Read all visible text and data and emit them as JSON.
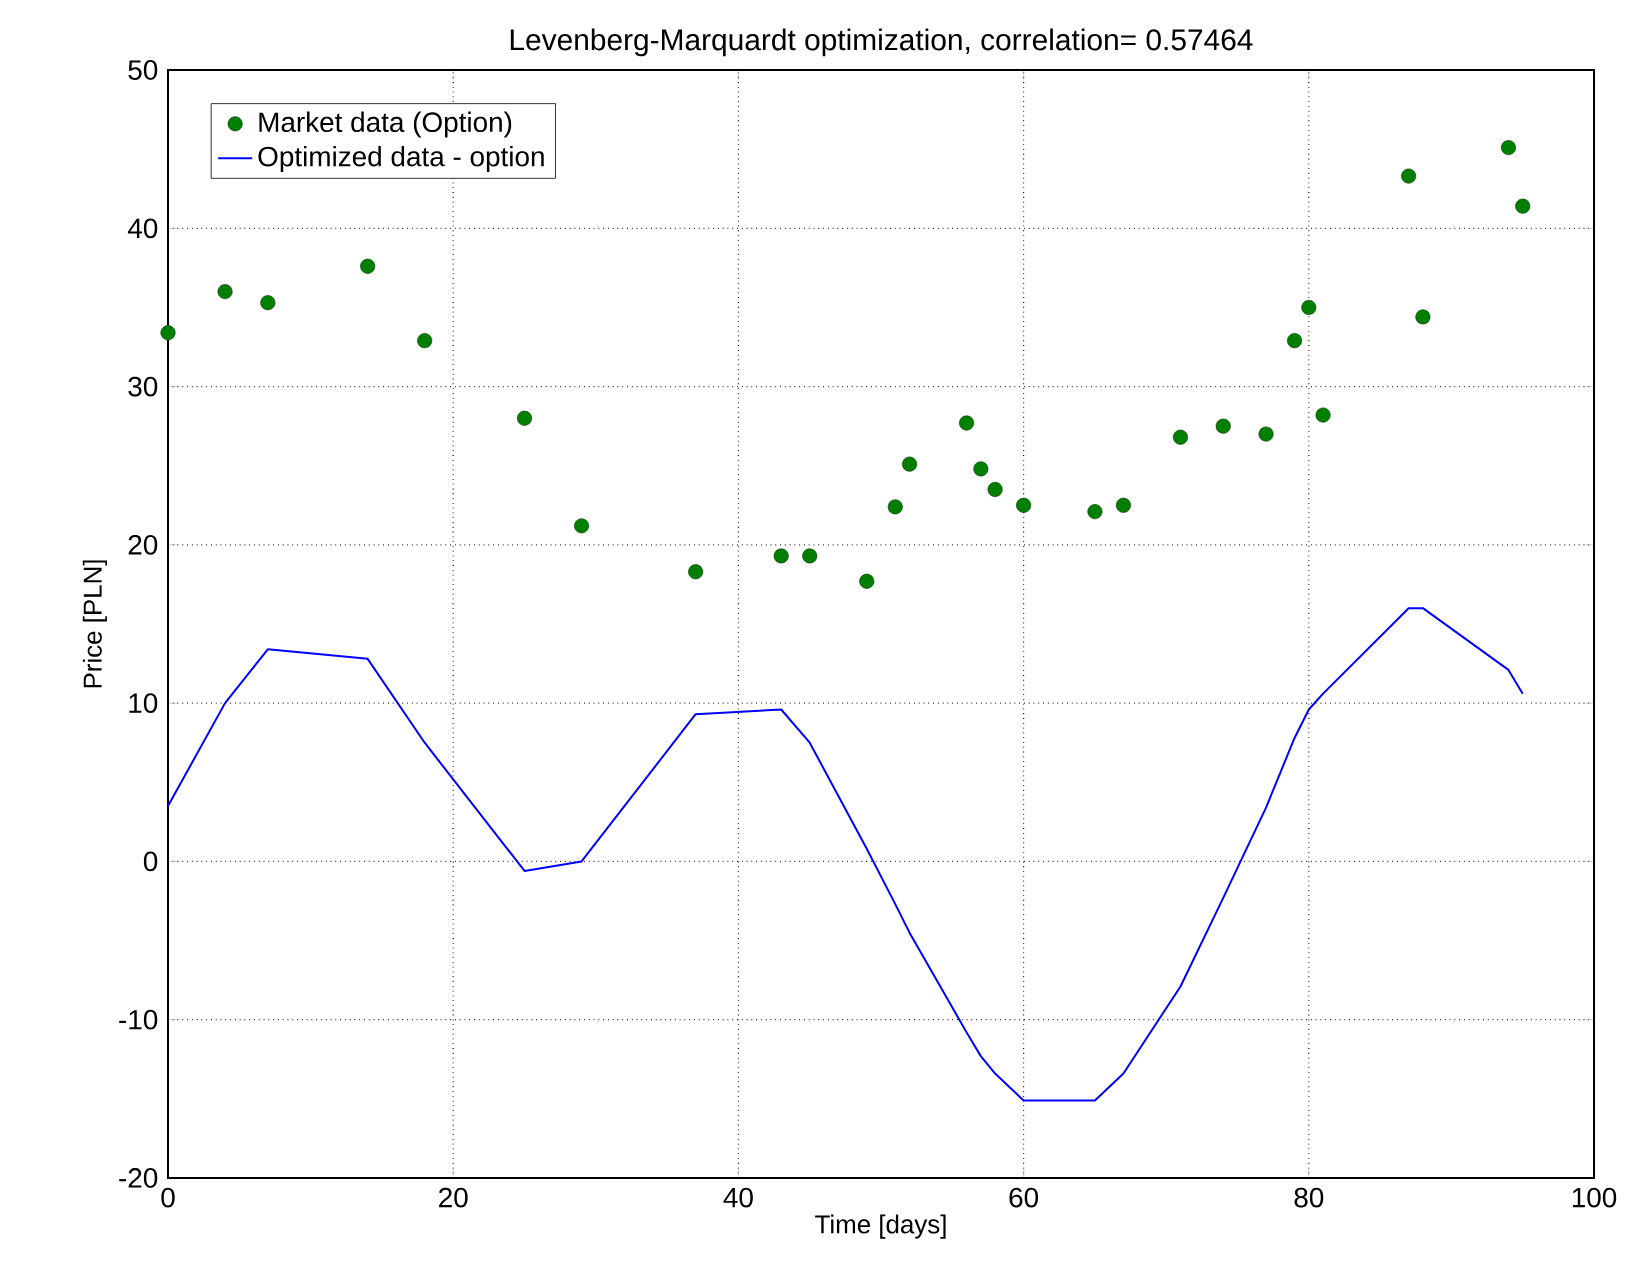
{
  "chart_data": {
    "type": "scatter",
    "title": "Levenberg-Marquardt optimization, correlation= 0.57464",
    "xlabel": "Time [days]",
    "ylabel": "Price [PLN]",
    "xlim": [
      0,
      100
    ],
    "ylim": [
      -20,
      50
    ],
    "xticks": [
      0,
      20,
      40,
      60,
      80,
      100
    ],
    "yticks": [
      -20,
      -10,
      0,
      10,
      20,
      30,
      40,
      50
    ],
    "grid": true,
    "legend": "top left",
    "marker": "circle",
    "series": [
      {
        "name": "Market data (Option)",
        "color": "#007f00",
        "x": [
          0,
          4,
          7,
          14,
          18,
          25,
          29,
          37,
          43,
          45,
          49,
          51,
          52,
          56,
          57,
          58,
          60,
          65,
          67,
          71,
          74,
          77,
          79,
          80,
          81,
          87,
          88,
          94,
          95
        ],
        "values": [
          33.4,
          36.0,
          35.3,
          37.6,
          32.9,
          28.0,
          21.2,
          18.3,
          19.3,
          19.3,
          17.7,
          22.4,
          25.1,
          27.7,
          24.8,
          23.5,
          22.5,
          22.1,
          22.5,
          26.8,
          27.5,
          27.0,
          32.9,
          35.0,
          28.2,
          43.3,
          34.4,
          45.1,
          41.4
        ]
      },
      {
        "name": "Optimized data - option",
        "type": "line",
        "line_style": "solid",
        "marker": "none",
        "color": "#0000ff",
        "x": [
          0,
          4,
          7,
          14,
          18,
          25,
          29,
          37,
          43,
          45,
          49,
          51,
          52,
          56,
          57,
          58,
          60,
          65,
          67,
          71,
          74,
          77,
          79,
          80,
          81,
          87,
          88,
          94,
          95
        ],
        "values": [
          3.5,
          10.0,
          13.4,
          12.8,
          7.5,
          -0.6,
          0.0,
          9.3,
          9.6,
          7.5,
          0.8,
          -2.7,
          -4.5,
          -10.8,
          -12.3,
          -13.4,
          -15.1,
          -15.1,
          -13.4,
          -7.9,
          -2.3,
          3.4,
          7.8,
          9.6,
          10.6,
          16.0,
          16.0,
          12.1,
          10.6
        ]
      }
    ]
  }
}
